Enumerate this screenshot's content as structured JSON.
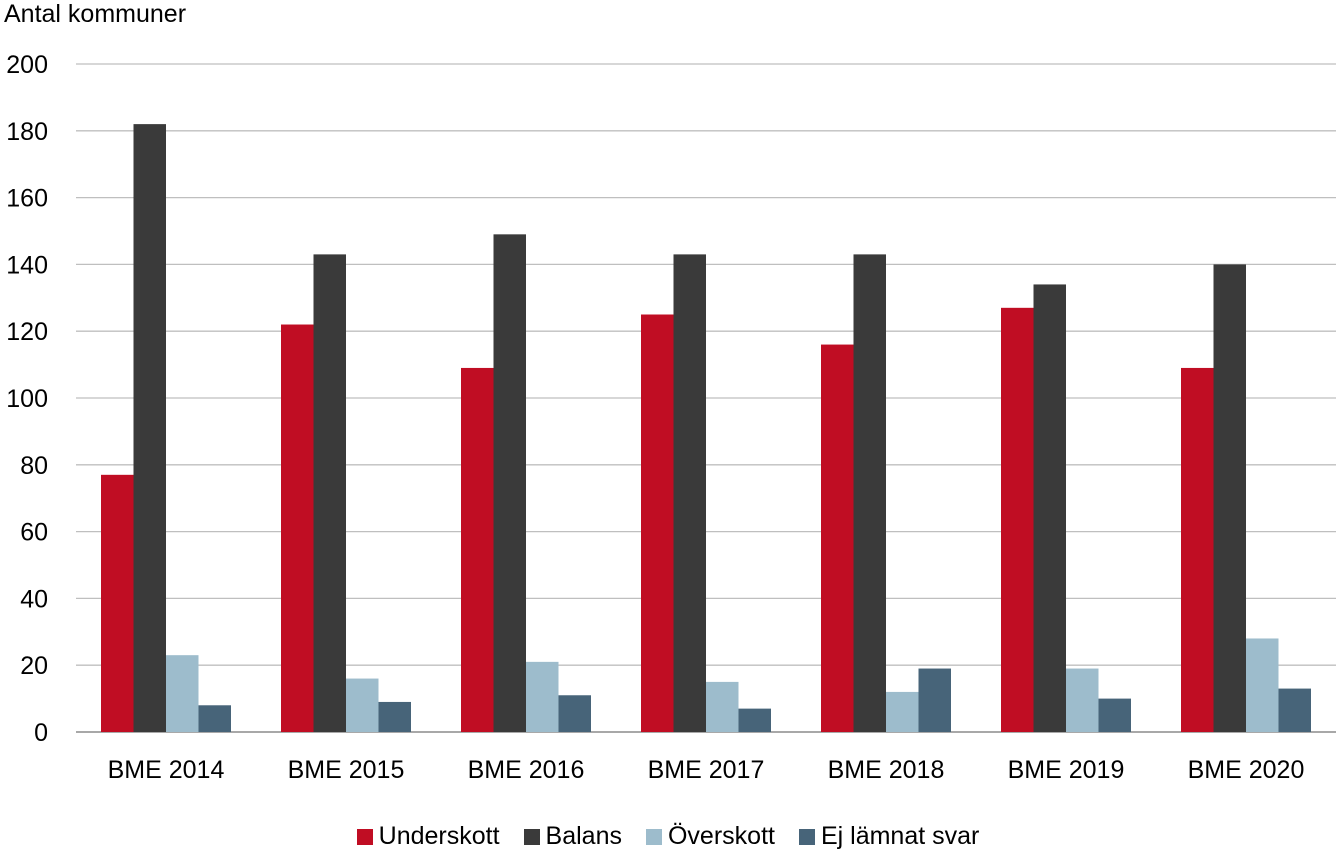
{
  "chart_data": {
    "type": "bar",
    "title": "",
    "ylabel": "Antal kommuner",
    "xlabel": "",
    "ylim": [
      0,
      200
    ],
    "yticks": [
      0,
      20,
      40,
      60,
      80,
      100,
      120,
      140,
      160,
      180,
      200
    ],
    "ytick_labels": [
      "0",
      "20",
      "40",
      "60",
      "80",
      "100",
      "120",
      "140",
      "160",
      "180",
      "200"
    ],
    "grid": true,
    "legend_position": "bottom",
    "categories": [
      "BME 2014",
      "BME 2015",
      "BME 2016",
      "BME 2017",
      "BME 2018",
      "BME 2019",
      "BME 2020"
    ],
    "series": [
      {
        "name": "Underskott",
        "color": "#c00d23",
        "values": [
          77,
          122,
          109,
          125,
          116,
          127,
          109
        ]
      },
      {
        "name": "Balans",
        "color": "#3a3a3a",
        "values": [
          182,
          143,
          149,
          143,
          143,
          134,
          140
        ]
      },
      {
        "name": "Överskott",
        "color": "#9dbccc",
        "values": [
          23,
          16,
          21,
          15,
          12,
          19,
          28
        ]
      },
      {
        "name": "Ej lämnat svar",
        "color": "#476479",
        "values": [
          8,
          9,
          11,
          7,
          19,
          10,
          13
        ]
      }
    ]
  }
}
